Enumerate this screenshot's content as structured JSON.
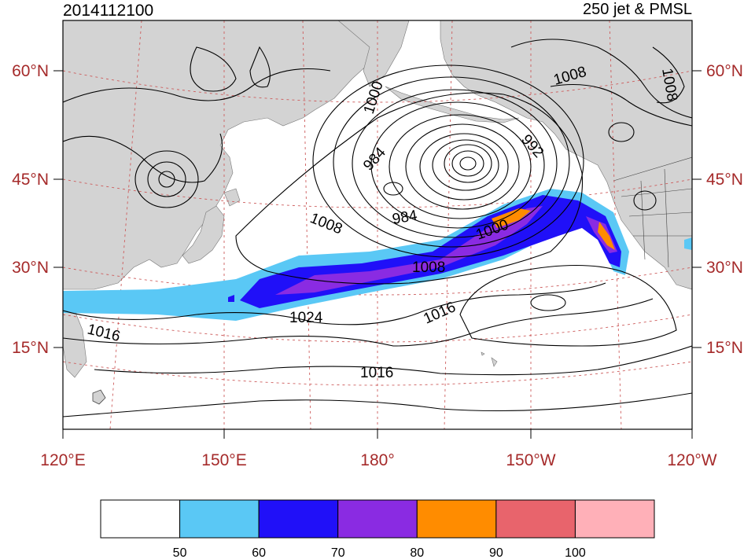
{
  "header": {
    "datetime": "2014112100",
    "product": "250 jet & PMSL"
  },
  "axes": {
    "left_lat_labels": [
      "60°N",
      "45°N",
      "30°N",
      "15°N"
    ],
    "right_lat_labels": [
      "60°N",
      "45°N",
      "30°N",
      "15°N"
    ],
    "lon_labels": [
      "120°E",
      "150°E",
      "180°",
      "150°W",
      "120°W"
    ]
  },
  "contour_labels": [
    "1000",
    "984",
    "992",
    "1008",
    "1008",
    "984",
    "1008",
    "1000",
    "1008",
    "1016",
    "1024",
    "1016",
    "1016"
  ],
  "colorbar": {
    "colors": [
      "#ffffff",
      "#5ac8f5",
      "#2010f8",
      "#8a2be2",
      "#ff8c00",
      "#e8646c",
      "#ffb0b8"
    ],
    "labels": [
      "50",
      "60",
      "70",
      "80",
      "90",
      "100"
    ]
  },
  "map_colors": {
    "land": "#d3d3d3",
    "ocean": "#ffffff",
    "graticule": "#cd5c5c",
    "contour": "#000000",
    "axis_labels": "#a52a2a"
  }
}
